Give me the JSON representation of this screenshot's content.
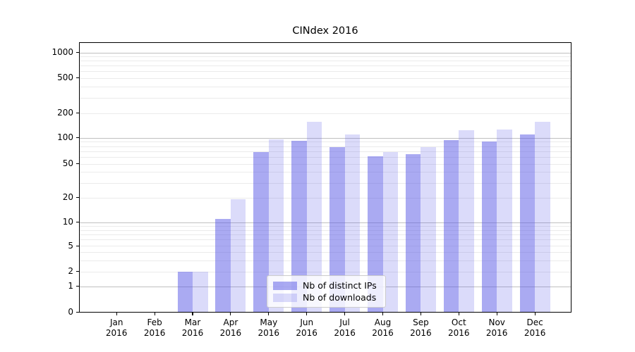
{
  "title": "CINdex 2016",
  "chart_data": {
    "type": "bar",
    "title": "CINdex 2016",
    "scale": "symlog",
    "grid": true,
    "legend_position": "lower center",
    "categories": [
      {
        "month": "Jan",
        "year": "2016"
      },
      {
        "month": "Feb",
        "year": "2016"
      },
      {
        "month": "Mar",
        "year": "2016"
      },
      {
        "month": "Apr",
        "year": "2016"
      },
      {
        "month": "May",
        "year": "2016"
      },
      {
        "month": "Jun",
        "year": "2016"
      },
      {
        "month": "Jul",
        "year": "2016"
      },
      {
        "month": "Aug",
        "year": "2016"
      },
      {
        "month": "Sep",
        "year": "2016"
      },
      {
        "month": "Oct",
        "year": "2016"
      },
      {
        "month": "Nov",
        "year": "2016"
      },
      {
        "month": "Dec",
        "year": "2016"
      }
    ],
    "series": [
      {
        "name": "Nb of distinct IPs",
        "color": "rgba(85,85,230,0.5)",
        "values": [
          0,
          0,
          2,
          11,
          69,
          92,
          78,
          61,
          65,
          94,
          91,
          110
        ]
      },
      {
        "name": "Nb of downloads",
        "color": "rgba(85,85,230,0.21)",
        "values": [
          0,
          0,
          2,
          19,
          96,
          158,
          110,
          68,
          78,
          124,
          125,
          158
        ]
      }
    ],
    "yticks": [
      0,
      1,
      2,
      5,
      10,
      20,
      50,
      100,
      200,
      500,
      1000
    ],
    "ylim": [
      0,
      1200
    ],
    "colors": {
      "major_grid": "#c0c0c0",
      "minor_grid": "#ebebeb",
      "spine": "#000000",
      "background": "#ffffff"
    }
  }
}
